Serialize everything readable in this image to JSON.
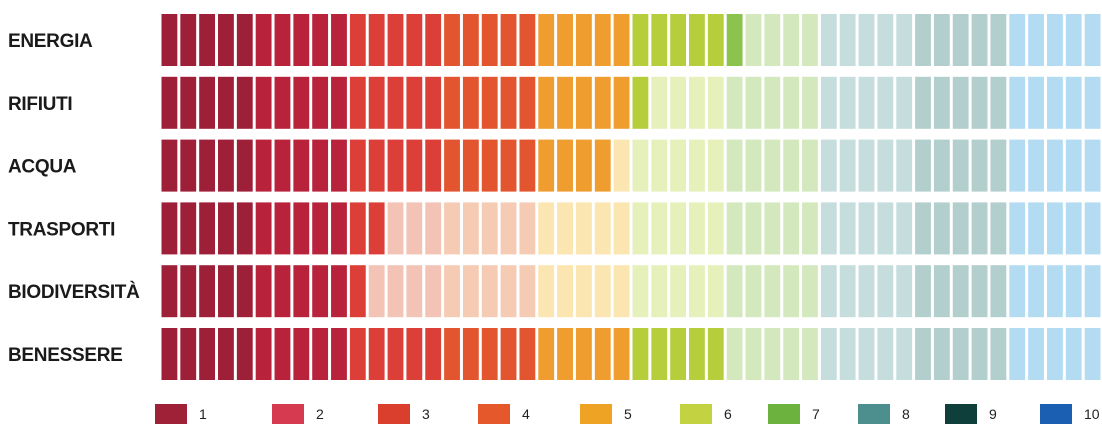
{
  "chart_data": {
    "type": "bar",
    "rows": [
      "ENERGIA",
      "RIFIUTI",
      "ACQUA",
      "TRASPORTI",
      "BIODIVERSITÀ",
      "BENESSERE"
    ],
    "values": [
      6.1,
      5.1,
      4.85,
      2.35,
      2.2,
      6.0
    ],
    "max": 10,
    "legend": [
      "1",
      "2",
      "3",
      "4",
      "5",
      "6",
      "7",
      "8",
      "9",
      "10"
    ],
    "scale_colors": {
      "solid": [
        "#a5203a",
        "#c8283e",
        "#de4438",
        "#e55a2c",
        "#eea033",
        "#b9cd3e",
        "#83bd4c",
        "#5f9a9a",
        "#0e4a46",
        "#1e64b6"
      ],
      "faded": [
        "#e6b9bd",
        "#f0c2c3",
        "#f4c6b4",
        "#f6ceb0",
        "#fbe7b3",
        "#e8f0bf",
        "#d3e9bd",
        "#c8dcdc",
        "#9fbebb",
        "#b7d8ef"
      ],
      "band_solid": [
        "#9e1f38",
        "#b8233b",
        "#dc3f38",
        "#e2552e",
        "#ee9d2e",
        "#b6cd3c",
        "#8cc34d",
        "#5b9c9c",
        "#7aa7a5",
        "#8bc5ea"
      ],
      "band_faded": [
        "#e3b8bd",
        "#e7b9bf",
        "#f3c3b6",
        "#f5cbb4",
        "#fbe5b0",
        "#e6f0bb",
        "#d3e9bd",
        "#c5dddd",
        "#b3cfcd",
        "#b3dcf3"
      ]
    },
    "legend_colors": [
      "#9e2138",
      "#d63a50",
      "#da3f2e",
      "#e5582c",
      "#efa325",
      "#c2d240",
      "#6bb23e",
      "#4d8f8f",
      "#0e3f3a",
      "#1a5fb2"
    ]
  }
}
